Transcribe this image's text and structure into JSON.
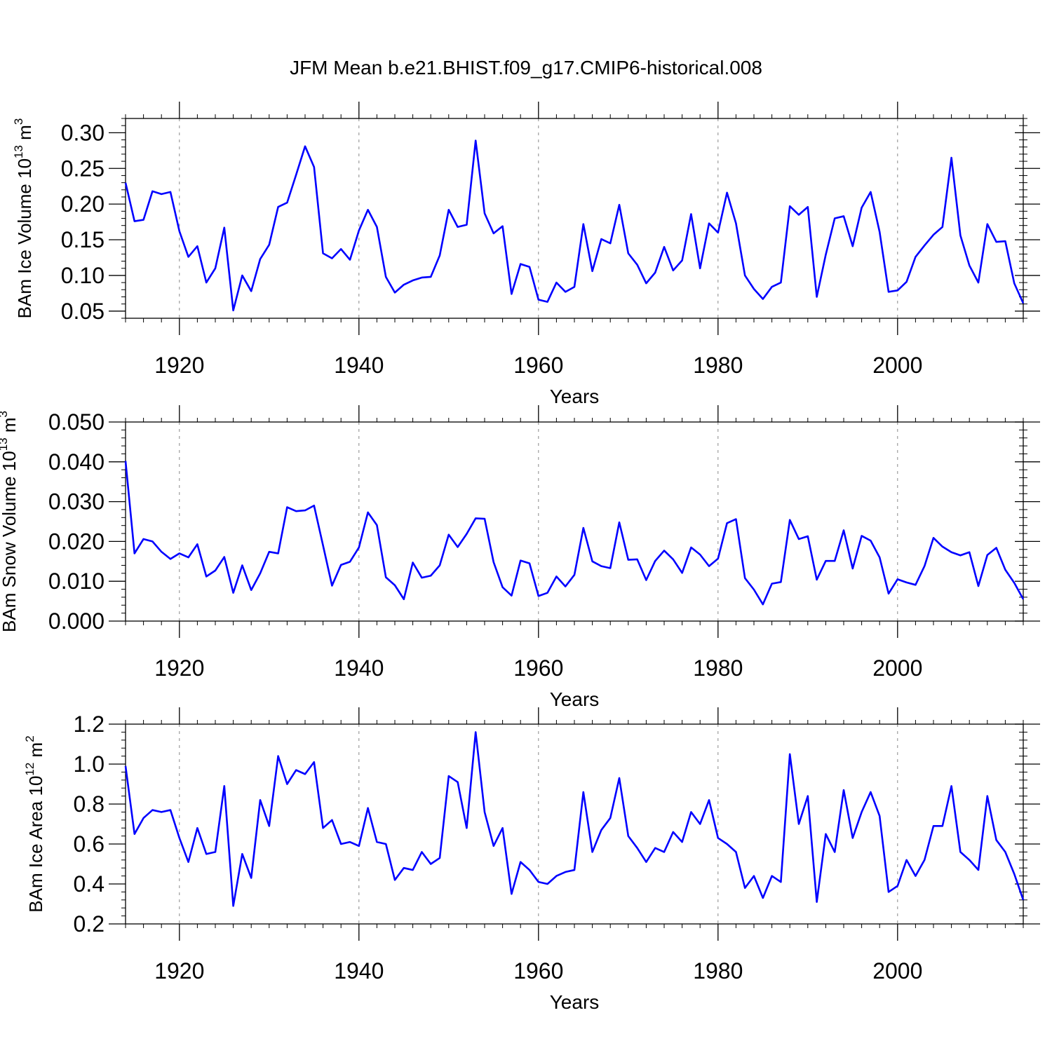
{
  "title": "JFM Mean b.e21.BHIST.f09_g17.CMIP6-historical.008",
  "line_color": "#0000ff",
  "chart_data": [
    {
      "type": "line",
      "ylabel": "BAm Ice Volume 10",
      "ylabel_exp": "13",
      "ylabel_unit": " m",
      "ylabel_unit_exp": "3",
      "xlabel": "Years",
      "xlim": [
        1914,
        2014
      ],
      "ylim": [
        0.04,
        0.32
      ],
      "yticks": [
        0.05,
        0.1,
        0.15,
        0.2,
        0.25,
        0.3
      ],
      "ytick_labels": [
        "0.05",
        "0.10",
        "0.15",
        "0.20",
        "0.25",
        "0.30"
      ],
      "xticks": [
        1920,
        1940,
        1960,
        1980,
        2000
      ],
      "xtick_labels": [
        "1920",
        "1940",
        "1960",
        "1980",
        "2000"
      ],
      "x_start": 1914,
      "values": [
        0.23,
        0.176,
        0.178,
        0.218,
        0.214,
        0.217,
        0.162,
        0.126,
        0.141,
        0.09,
        0.11,
        0.167,
        0.051,
        0.1,
        0.078,
        0.123,
        0.143,
        0.196,
        0.202,
        0.241,
        0.281,
        0.252,
        0.131,
        0.124,
        0.137,
        0.122,
        0.163,
        0.192,
        0.168,
        0.098,
        0.076,
        0.087,
        0.093,
        0.097,
        0.098,
        0.128,
        0.192,
        0.168,
        0.171,
        0.289,
        0.187,
        0.159,
        0.169,
        0.074,
        0.116,
        0.112,
        0.066,
        0.063,
        0.09,
        0.077,
        0.084,
        0.172,
        0.106,
        0.151,
        0.145,
        0.199,
        0.131,
        0.115,
        0.089,
        0.104,
        0.14,
        0.107,
        0.121,
        0.186,
        0.11,
        0.173,
        0.16,
        0.216,
        0.173,
        0.1,
        0.081,
        0.067,
        0.084,
        0.09,
        0.197,
        0.185,
        0.196,
        0.07,
        0.129,
        0.18,
        0.183,
        0.141,
        0.195,
        0.217,
        0.161,
        0.077,
        0.079,
        0.091,
        0.126,
        0.142,
        0.157,
        0.168,
        0.265,
        0.156,
        0.114,
        0.09,
        0.172,
        0.147,
        0.148,
        0.089,
        0.061
      ]
    },
    {
      "type": "line",
      "ylabel": "BAm Snow Volume 10",
      "ylabel_exp": "13",
      "ylabel_unit": " m",
      "ylabel_unit_exp": "3",
      "xlabel": "Years",
      "xlim": [
        1914,
        2014
      ],
      "ylim": [
        0.0,
        0.05
      ],
      "yticks": [
        0.0,
        0.01,
        0.02,
        0.03,
        0.04,
        0.05
      ],
      "ytick_labels": [
        "0.000",
        "0.010",
        "0.020",
        "0.030",
        "0.040",
        "0.050"
      ],
      "xticks": [
        1920,
        1940,
        1960,
        1980,
        2000
      ],
      "xtick_labels": [
        "1920",
        "1940",
        "1960",
        "1980",
        "2000"
      ],
      "x_start": 1914,
      "values": [
        0.0402,
        0.017,
        0.0206,
        0.02,
        0.0174,
        0.0156,
        0.017,
        0.016,
        0.0193,
        0.0112,
        0.0127,
        0.0161,
        0.0071,
        0.014,
        0.0078,
        0.012,
        0.0174,
        0.017,
        0.0286,
        0.0276,
        0.0278,
        0.029,
        0.019,
        0.0089,
        0.0141,
        0.0149,
        0.0185,
        0.0273,
        0.0241,
        0.011,
        0.009,
        0.0055,
        0.0147,
        0.0109,
        0.0114,
        0.014,
        0.0217,
        0.0186,
        0.0219,
        0.0258,
        0.0257,
        0.0148,
        0.0085,
        0.0064,
        0.0152,
        0.0145,
        0.0063,
        0.0071,
        0.0112,
        0.0087,
        0.0116,
        0.0234,
        0.015,
        0.0138,
        0.0133,
        0.0248,
        0.0154,
        0.0155,
        0.0103,
        0.0151,
        0.0177,
        0.0155,
        0.0121,
        0.0185,
        0.0167,
        0.0138,
        0.0157,
        0.0246,
        0.0256,
        0.0108,
        0.0079,
        0.0042,
        0.0094,
        0.0098,
        0.0254,
        0.0206,
        0.0213,
        0.0104,
        0.0151,
        0.0151,
        0.0228,
        0.0132,
        0.0214,
        0.0202,
        0.016,
        0.0069,
        0.0105,
        0.0097,
        0.0091,
        0.0138,
        0.0209,
        0.0187,
        0.0173,
        0.0165,
        0.0173,
        0.0088,
        0.0166,
        0.0184,
        0.0129,
        0.0096,
        0.0055
      ]
    },
    {
      "type": "line",
      "ylabel": "BAm Ice Area 10",
      "ylabel_exp": "12",
      "ylabel_unit": " m",
      "ylabel_unit_exp": "2",
      "xlabel": "Years",
      "xlim": [
        1914,
        2014
      ],
      "ylim": [
        0.2,
        1.2
      ],
      "yticks": [
        0.2,
        0.4,
        0.6,
        0.8,
        1.0,
        1.2
      ],
      "ytick_labels": [
        "0.2",
        "0.4",
        "0.6",
        "0.8",
        "1.0",
        "1.2"
      ],
      "xticks": [
        1920,
        1940,
        1960,
        1980,
        2000
      ],
      "xtick_labels": [
        "1920",
        "1940",
        "1960",
        "1980",
        "2000"
      ],
      "x_start": 1914,
      "values": [
        0.99,
        0.65,
        0.73,
        0.77,
        0.76,
        0.77,
        0.63,
        0.51,
        0.68,
        0.55,
        0.56,
        0.89,
        0.29,
        0.55,
        0.43,
        0.82,
        0.69,
        1.04,
        0.9,
        0.97,
        0.95,
        1.01,
        0.68,
        0.72,
        0.6,
        0.61,
        0.59,
        0.78,
        0.61,
        0.6,
        0.42,
        0.48,
        0.47,
        0.56,
        0.5,
        0.53,
        0.94,
        0.91,
        0.68,
        1.16,
        0.76,
        0.59,
        0.68,
        0.35,
        0.51,
        0.47,
        0.41,
        0.4,
        0.44,
        0.46,
        0.47,
        0.86,
        0.56,
        0.67,
        0.73,
        0.93,
        0.64,
        0.58,
        0.51,
        0.58,
        0.56,
        0.66,
        0.61,
        0.76,
        0.7,
        0.82,
        0.63,
        0.6,
        0.56,
        0.38,
        0.44,
        0.33,
        0.44,
        0.41,
        1.05,
        0.7,
        0.84,
        0.31,
        0.65,
        0.56,
        0.87,
        0.63,
        0.76,
        0.86,
        0.74,
        0.36,
        0.39,
        0.52,
        0.44,
        0.52,
        0.69,
        0.69,
        0.89,
        0.56,
        0.52,
        0.47,
        0.84,
        0.62,
        0.56,
        0.45,
        0.32
      ]
    }
  ]
}
